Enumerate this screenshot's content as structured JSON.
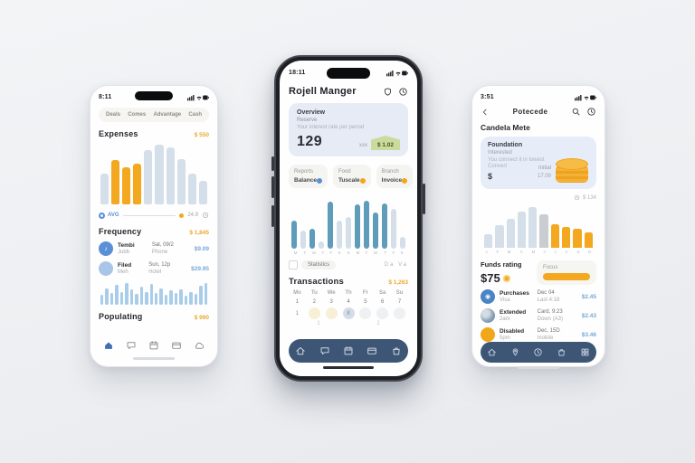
{
  "phone1": {
    "time": "8:11",
    "tabs": [
      {
        "label": "Deals"
      },
      {
        "label": "Comes"
      },
      {
        "label": "Advantage"
      },
      {
        "label": "Cash"
      }
    ],
    "expenses_title": "Expenses",
    "expenses_value": "$ 550",
    "bars": [
      {
        "v": 50,
        "c": "pale"
      },
      {
        "v": 72,
        "c": "orange"
      },
      {
        "v": 60,
        "c": "orange"
      },
      {
        "v": 66,
        "c": "orange"
      },
      {
        "v": 88,
        "c": "pale"
      },
      {
        "v": 97,
        "c": "pale"
      },
      {
        "v": 92,
        "c": "pale"
      },
      {
        "v": 74,
        "c": "pale"
      },
      {
        "v": 50,
        "c": "pale"
      },
      {
        "v": 38,
        "c": "pale"
      }
    ],
    "slider_left": "AVG",
    "slider_value": "24.9",
    "frequency_title": "Frequency",
    "frequency_value": "$ 1,845",
    "items": [
      {
        "name": "Tembi",
        "sub": "Jubb",
        "mid1": "Sat, 09/2",
        "mid2": "Phone",
        "amount": "$9.09",
        "avatar": "#5b8fd6",
        "glyph": "♪"
      },
      {
        "name": "Filed",
        "sub": "Meh",
        "mid1": "Sun, 12p",
        "mid2": "Hotel",
        "amount": "$29.95",
        "avatar": "#a9c6e8",
        "glyph": ""
      }
    ],
    "mini_bars": [
      45,
      75,
      55,
      90,
      60,
      100,
      70,
      50,
      85,
      60,
      95,
      55,
      75,
      45,
      65,
      55,
      72,
      40,
      60,
      50,
      88,
      100
    ],
    "populating_title": "Populating",
    "populating_value": "$ 990",
    "nav": [
      {
        "icon": "home",
        "active": true
      },
      {
        "icon": "chat"
      },
      {
        "icon": "calendar"
      },
      {
        "icon": "card"
      },
      {
        "icon": "cloud"
      }
    ]
  },
  "phone2": {
    "time": "18:11",
    "title": "Rojell Manger",
    "header_icons": [
      {
        "icon": "shield"
      },
      {
        "icon": "clock"
      }
    ],
    "overview": {
      "line1": "Overview",
      "line2": "Reserve",
      "line3": "Your interest rate per period",
      "big": "129",
      "small": "xxx",
      "badge": "$ 1.02"
    },
    "mini_cards": [
      {
        "top": "Reports",
        "bottom": "Balance",
        "dot": "#5b8fd6"
      },
      {
        "top": "Food",
        "bottom": "Tuscale",
        "dot": "#f2a71b"
      },
      {
        "top": "Branch",
        "bottom": "Invoice",
        "dot": "#f2a71b"
      }
    ],
    "bars": [
      {
        "v": 55,
        "c": "teal"
      },
      {
        "v": 35,
        "c": "pale"
      },
      {
        "v": 40,
        "c": "teal"
      },
      {
        "v": 14,
        "c": "pale"
      },
      {
        "v": 92,
        "c": "teal"
      },
      {
        "v": 55,
        "c": "pale"
      },
      {
        "v": 62,
        "c": "pale"
      },
      {
        "v": 88,
        "c": "teal"
      },
      {
        "v": 95,
        "c": "teal"
      },
      {
        "v": 72,
        "c": "teal"
      },
      {
        "v": 90,
        "c": "teal"
      },
      {
        "v": 78,
        "c": "pale"
      },
      {
        "v": 24,
        "c": "pale"
      }
    ],
    "x_labels": [
      "M",
      "T",
      "W",
      "T",
      "F",
      "S",
      "S",
      "M",
      "T",
      "W",
      "T",
      "F",
      "S"
    ],
    "stat_label": "Statistics",
    "stat_right": "Da Va",
    "transactions_title": "Transactions",
    "transactions_value": "$ 1,263",
    "calendar": {
      "headers": [
        "Mo",
        "Tu",
        "We",
        "Th",
        "Fr",
        "Sa",
        "Su"
      ],
      "row1": [
        "1",
        "2",
        "3",
        "4",
        "5",
        "6",
        "7"
      ],
      "row2": [
        {
          "style": "num",
          "t": "1"
        },
        {
          "style": "yellow",
          "t": ""
        },
        {
          "style": "yellow",
          "t": ""
        },
        {
          "style": "active",
          "t": "8"
        },
        {
          "style": "pale",
          "t": ""
        },
        {
          "style": "pale",
          "t": ""
        },
        {
          "style": "pale",
          "t": ""
        }
      ],
      "row3": [
        "1",
        "2"
      ]
    },
    "nav": [
      {
        "icon": "home"
      },
      {
        "icon": "chat"
      },
      {
        "icon": "calendar"
      },
      {
        "icon": "card"
      },
      {
        "icon": "bag"
      }
    ]
  },
  "phone3": {
    "time": "3:51",
    "nav_title": "Potecede",
    "header_icons": [
      {
        "icon": "search"
      },
      {
        "icon": "clock"
      }
    ],
    "heading": "Candela Mete",
    "card": {
      "line1": "Foundation",
      "line2": "Interested",
      "line3": "You connect it in lowest",
      "line4": "Convert",
      "currency": "$",
      "right1": "Initial",
      "right2": "17.00"
    },
    "chart_note": "$ 134",
    "bars": [
      {
        "v": 30,
        "c": "pale"
      },
      {
        "v": 50,
        "c": "pale"
      },
      {
        "v": 65,
        "c": "pale"
      },
      {
        "v": 80,
        "c": "pale"
      },
      {
        "v": 90,
        "c": "pale"
      },
      {
        "v": 75,
        "c": "gray"
      },
      {
        "v": 52,
        "c": "orange"
      },
      {
        "v": 47,
        "c": "orange"
      },
      {
        "v": 42,
        "c": "orange"
      },
      {
        "v": 35,
        "c": "orange"
      }
    ],
    "x_labels": [
      "J",
      "F",
      "M",
      "A",
      "M",
      "J",
      "J",
      "A",
      "S",
      "O"
    ],
    "funds_title": "Funds rating",
    "funds_value": "$75",
    "focus_label": "Focus",
    "items": [
      {
        "name": "Purchases",
        "sub": "Visa",
        "mid1": "Dec 04",
        "mid2": "Last 4:18",
        "amount": "$2.45",
        "avatar": "#4a84c4",
        "glyph": "◉"
      },
      {
        "name": "Extended",
        "sub": "2am",
        "mid1": "Card, 9:23",
        "mid2": "Down (A3)",
        "amount": "$2.43",
        "avatar": "texture",
        "glyph": ""
      },
      {
        "name": "Disabled",
        "sub": "5pm",
        "mid1": "Dec, 15D",
        "mid2": "mobile",
        "amount": "$3.46",
        "avatar": "#f2a71b",
        "glyph": ""
      }
    ],
    "nav": [
      {
        "icon": "home"
      },
      {
        "icon": "pin"
      },
      {
        "icon": "clock"
      },
      {
        "icon": "bag"
      },
      {
        "icon": "grid"
      }
    ]
  }
}
